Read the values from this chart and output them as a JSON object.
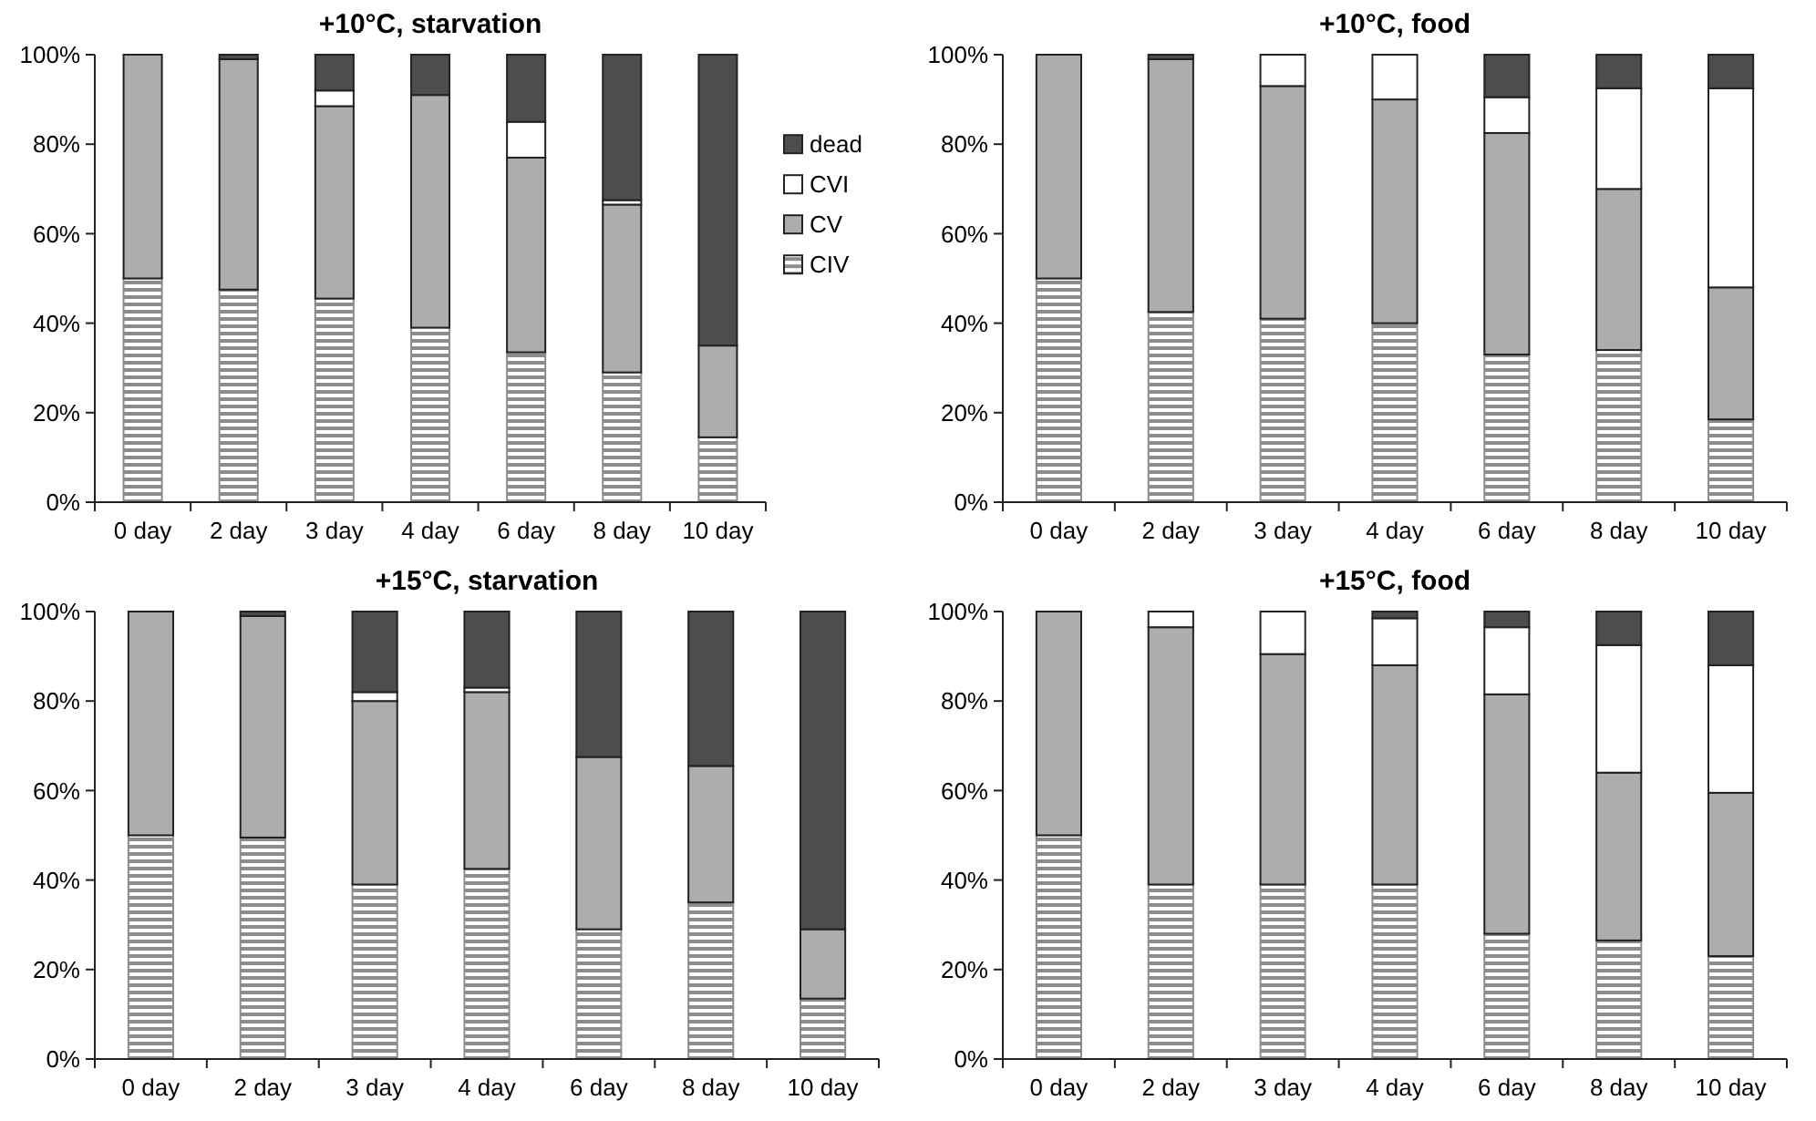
{
  "chart_data": [
    {
      "type": "bar",
      "title": "+10°C, starvation",
      "stacked": true,
      "categories": [
        "0 day",
        "2 day",
        "3 day",
        "4 day",
        "6 day",
        "8 day",
        "10 day"
      ],
      "ylim": [
        0,
        100
      ],
      "yticks": [
        {
          "value": 0,
          "label": "0%"
        },
        {
          "value": 20,
          "label": "20%"
        },
        {
          "value": 40,
          "label": "40%"
        },
        {
          "value": 60,
          "label": "60%"
        },
        {
          "value": 80,
          "label": "80%"
        },
        {
          "value": 100,
          "label": "100%"
        }
      ],
      "grid": false,
      "legend": "right",
      "series": [
        {
          "name": "CIV",
          "color": "#8c8c8c",
          "values": [
            50,
            47.5,
            45.5,
            39,
            33.5,
            29,
            14.5
          ]
        },
        {
          "name": "CV",
          "color": "#adadad",
          "values": [
            50,
            51.5,
            43,
            52,
            43.5,
            37.5,
            20.5
          ]
        },
        {
          "name": "CVI",
          "color": "#ffffff",
          "values": [
            0,
            0,
            3.5,
            0,
            8,
            1,
            0
          ]
        },
        {
          "name": "dead",
          "color": "#4d4d4d",
          "values": [
            0,
            1,
            8,
            9,
            15,
            32.5,
            65
          ]
        }
      ]
    },
    {
      "type": "bar",
      "title": "+10°C, food",
      "stacked": true,
      "categories": [
        "0 day",
        "2 day",
        "3 day",
        "4 day",
        "6 day",
        "8 day",
        "10 day"
      ],
      "ylim": [
        0,
        100
      ],
      "yticks": [
        {
          "value": 0,
          "label": "0%"
        },
        {
          "value": 20,
          "label": "20%"
        },
        {
          "value": 40,
          "label": "40%"
        },
        {
          "value": 60,
          "label": "60%"
        },
        {
          "value": 80,
          "label": "80%"
        },
        {
          "value": 100,
          "label": "100%"
        }
      ],
      "grid": false,
      "series": [
        {
          "color": "#8c8c8c",
          "values": [
            50,
            42.5,
            41,
            40,
            33,
            34,
            18.5
          ]
        },
        {
          "color": "#adadad",
          "values": [
            50,
            56.5,
            52,
            50,
            49.5,
            36,
            29.5
          ]
        },
        {
          "color": "#ffffff",
          "values": [
            0,
            0,
            7,
            10,
            8,
            22.5,
            44.5
          ]
        },
        {
          "color": "#4d4d4d",
          "values": [
            0,
            1,
            0,
            0,
            9.5,
            7.5,
            7.5
          ]
        }
      ]
    },
    {
      "type": "bar",
      "title": "+15°C, starvation",
      "stacked": true,
      "categories": [
        "0 day",
        "2 day",
        "3 day",
        "4 day",
        "6 day",
        "8 day",
        "10 day"
      ],
      "ylim": [
        0,
        100
      ],
      "yticks": [
        {
          "value": 0,
          "label": "0%"
        },
        {
          "value": 20,
          "label": "20%"
        },
        {
          "value": 40,
          "label": "40%"
        },
        {
          "value": 60,
          "label": "60%"
        },
        {
          "value": 80,
          "label": "80%"
        },
        {
          "value": 100,
          "label": "100%"
        }
      ],
      "grid": false,
      "series": [
        {
          "color": "#8c8c8c",
          "values": [
            50,
            49.5,
            39,
            42.5,
            29,
            35,
            13.5
          ]
        },
        {
          "color": "#adadad",
          "values": [
            50,
            49.5,
            41,
            39.5,
            38.5,
            30.5,
            15.5
          ]
        },
        {
          "color": "#ffffff",
          "values": [
            0,
            0,
            2,
            1,
            0,
            0,
            0
          ]
        },
        {
          "color": "#4d4d4d",
          "values": [
            0,
            1,
            18,
            17,
            32.5,
            34.5,
            71
          ]
        }
      ]
    },
    {
      "type": "bar",
      "title": "+15°C, food",
      "stacked": true,
      "categories": [
        "0 day",
        "2 day",
        "3 day",
        "4 day",
        "6 day",
        "8 day",
        "10 day"
      ],
      "ylim": [
        0,
        100
      ],
      "yticks": [
        {
          "value": 0,
          "label": "0%"
        },
        {
          "value": 20,
          "label": "20%"
        },
        {
          "value": 40,
          "label": "40%"
        },
        {
          "value": 60,
          "label": "60%"
        },
        {
          "value": 80,
          "label": "80%"
        },
        {
          "value": 100,
          "label": "100%"
        }
      ],
      "grid": false,
      "series": [
        {
          "color": "#8c8c8c",
          "values": [
            50,
            39,
            39,
            39,
            28,
            26.5,
            23
          ]
        },
        {
          "color": "#adadad",
          "values": [
            50,
            57.5,
            51.5,
            49,
            53.5,
            37.5,
            36.5
          ]
        },
        {
          "color": "#ffffff",
          "values": [
            0,
            3.5,
            9.5,
            10.5,
            15,
            28.5,
            28.5
          ]
        },
        {
          "color": "#4d4d4d",
          "values": [
            0,
            0,
            0,
            1.5,
            3.5,
            7.5,
            12
          ]
        }
      ]
    }
  ]
}
